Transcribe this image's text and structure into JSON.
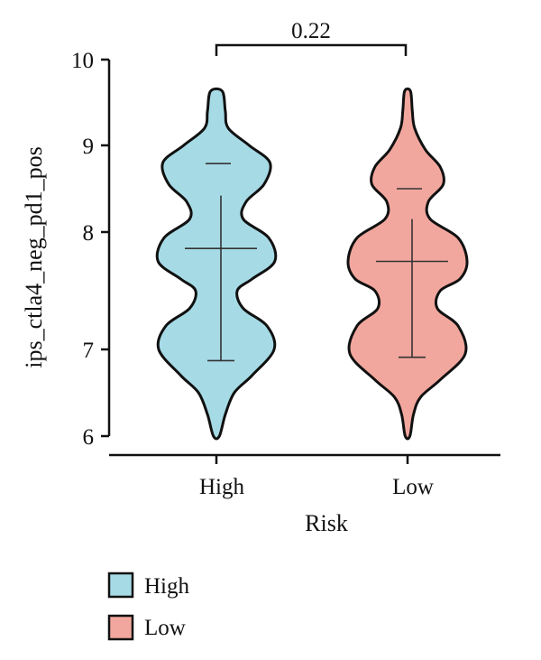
{
  "chart_data": {
    "type": "violin",
    "xlabel": "Risk",
    "ylabel": "ips_ctla4_neg_pd1_pos",
    "yticks": [
      "6",
      "7",
      "8",
      "9",
      "10"
    ],
    "categories": [
      "High",
      "Low"
    ],
    "grid": false,
    "legend_position": "bottom-left",
    "colors": {
      "High": "#a6dbe6",
      "Low": "#f2a79e"
    },
    "annotation": {
      "text": "0.22",
      "between": [
        "High",
        "Low"
      ]
    },
    "series": [
      {
        "name": "High",
        "min": 6.0,
        "max": 9.63,
        "q1": 6.87,
        "median": 7.86,
        "q3": 8.42,
        "p95": 8.79,
        "density": [
          [
            6.0,
            0.05
          ],
          [
            6.25,
            0.15
          ],
          [
            6.5,
            0.3
          ],
          [
            6.7,
            0.6
          ],
          [
            7.0,
            0.97
          ],
          [
            7.2,
            0.85
          ],
          [
            7.35,
            0.45
          ],
          [
            7.5,
            0.35
          ],
          [
            7.6,
            0.6
          ],
          [
            7.75,
            0.98
          ],
          [
            7.95,
            0.88
          ],
          [
            8.15,
            0.45
          ],
          [
            8.35,
            0.5
          ],
          [
            8.55,
            0.8
          ],
          [
            8.8,
            0.9
          ],
          [
            9.0,
            0.55
          ],
          [
            9.2,
            0.2
          ],
          [
            9.4,
            0.15
          ],
          [
            9.63,
            0.1
          ]
        ]
      },
      {
        "name": "Low",
        "min": 6.0,
        "max": 9.63,
        "q1": 6.91,
        "median": 7.75,
        "q3": 8.15,
        "p95": 8.5,
        "density": [
          [
            6.0,
            0.04
          ],
          [
            6.25,
            0.1
          ],
          [
            6.45,
            0.22
          ],
          [
            6.65,
            0.55
          ],
          [
            6.95,
            0.97
          ],
          [
            7.2,
            0.85
          ],
          [
            7.35,
            0.5
          ],
          [
            7.5,
            0.55
          ],
          [
            7.6,
            0.88
          ],
          [
            7.75,
            1.0
          ],
          [
            7.95,
            0.85
          ],
          [
            8.15,
            0.38
          ],
          [
            8.35,
            0.35
          ],
          [
            8.55,
            0.6
          ],
          [
            8.75,
            0.55
          ],
          [
            8.95,
            0.3
          ],
          [
            9.2,
            0.12
          ],
          [
            9.4,
            0.08
          ],
          [
            9.63,
            0.05
          ]
        ]
      }
    ]
  }
}
